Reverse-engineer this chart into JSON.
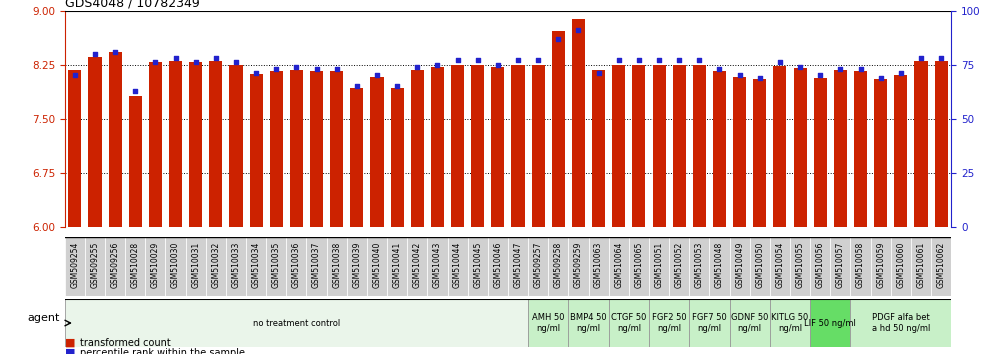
{
  "title": "GDS4048 / 10782349",
  "samples": [
    "GSM509254",
    "GSM509255",
    "GSM509256",
    "GSM510028",
    "GSM510029",
    "GSM510030",
    "GSM510031",
    "GSM510032",
    "GSM510033",
    "GSM510034",
    "GSM510035",
    "GSM510036",
    "GSM510037",
    "GSM510038",
    "GSM510039",
    "GSM510040",
    "GSM510041",
    "GSM510042",
    "GSM510043",
    "GSM510044",
    "GSM510045",
    "GSM510046",
    "GSM510047",
    "GSM509257",
    "GSM509258",
    "GSM509259",
    "GSM510063",
    "GSM510064",
    "GSM510065",
    "GSM510051",
    "GSM510052",
    "GSM510053",
    "GSM510048",
    "GSM510049",
    "GSM510050",
    "GSM510054",
    "GSM510055",
    "GSM510056",
    "GSM510057",
    "GSM510058",
    "GSM510059",
    "GSM510060",
    "GSM510061",
    "GSM510062"
  ],
  "bar_values": [
    8.18,
    8.35,
    8.42,
    7.82,
    8.28,
    8.3,
    8.28,
    8.3,
    8.25,
    8.12,
    8.16,
    8.17,
    8.16,
    8.16,
    7.93,
    8.08,
    7.93,
    8.17,
    8.22,
    8.25,
    8.24,
    8.22,
    8.25,
    8.25,
    8.72,
    8.88,
    8.18,
    8.25,
    8.25,
    8.25,
    8.25,
    8.25,
    8.16,
    8.08,
    8.05,
    8.23,
    8.2,
    8.07,
    8.17,
    8.16,
    8.05,
    8.1,
    8.3,
    8.3
  ],
  "percentile_values": [
    70,
    80,
    81,
    63,
    76,
    78,
    76,
    78,
    76,
    71,
    73,
    74,
    73,
    73,
    65,
    70,
    65,
    74,
    75,
    77,
    77,
    75,
    77,
    77,
    87,
    91,
    71,
    77,
    77,
    77,
    77,
    77,
    73,
    70,
    69,
    76,
    74,
    70,
    73,
    73,
    69,
    71,
    78,
    78
  ],
  "bar_color": "#cc2200",
  "percentile_color": "#2222cc",
  "ylim_left": [
    6,
    9
  ],
  "ylim_right": [
    0,
    100
  ],
  "yticks_left": [
    6,
    6.75,
    7.5,
    8.25,
    9
  ],
  "yticks_right": [
    0,
    25,
    50,
    75,
    100
  ],
  "grid_values": [
    6.75,
    7.5,
    8.25
  ],
  "agents": [
    {
      "label": "no treatment control",
      "start": 0,
      "end": 23,
      "color": "#eaf5ea",
      "bright": false
    },
    {
      "label": "AMH 50\nng/ml",
      "start": 23,
      "end": 25,
      "color": "#c8f0c8",
      "bright": false
    },
    {
      "label": "BMP4 50\nng/ml",
      "start": 25,
      "end": 27,
      "color": "#c8f0c8",
      "bright": false
    },
    {
      "label": "CTGF 50\nng/ml",
      "start": 27,
      "end": 29,
      "color": "#c8f0c8",
      "bright": false
    },
    {
      "label": "FGF2 50\nng/ml",
      "start": 29,
      "end": 31,
      "color": "#c8f0c8",
      "bright": false
    },
    {
      "label": "FGF7 50\nng/ml",
      "start": 31,
      "end": 33,
      "color": "#c8f0c8",
      "bright": false
    },
    {
      "label": "GDNF 50\nng/ml",
      "start": 33,
      "end": 35,
      "color": "#c8f0c8",
      "bright": false
    },
    {
      "label": "KITLG 50\nng/ml",
      "start": 35,
      "end": 37,
      "color": "#c8f0c8",
      "bright": false
    },
    {
      "label": "LIF 50 ng/ml",
      "start": 37,
      "end": 39,
      "color": "#66dd66",
      "bright": true
    },
    {
      "label": "PDGF alfa bet\na hd 50 ng/ml",
      "start": 39,
      "end": 44,
      "color": "#c8f0c8",
      "bright": false
    }
  ],
  "left_axis_color": "#cc2200",
  "right_axis_color": "#2222cc",
  "tick_label_bg": "#cccccc"
}
